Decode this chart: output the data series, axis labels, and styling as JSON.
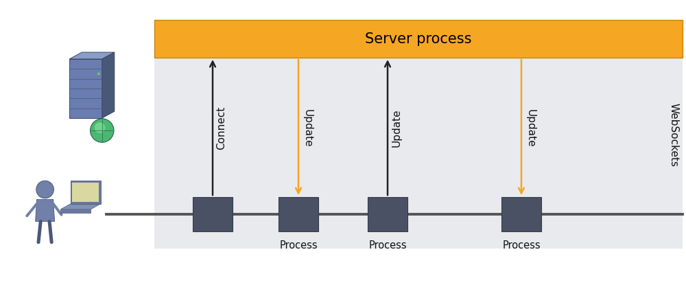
{
  "background_color": "#ffffff",
  "diagram_bg_color": "#e8eaed",
  "server_bar_color": "#f5a623",
  "server_bar_edge_color": "#c8850a",
  "server_text": "Server process",
  "server_text_color": "#000000",
  "process_box_color": "#4a5165",
  "process_box_edge": "#353a4a",
  "timeline_color": "#555555",
  "arrow_up_color": "#222222",
  "arrow_down_color": "#f5a623",
  "websockets_label": "WebSockets",
  "connect_label": "Connect",
  "update_label": "Update",
  "process_labels": [
    "Process",
    "Process",
    "Process"
  ],
  "figsize": [
    10.0,
    4.35
  ],
  "dpi": 100,
  "server_icon_color_front": "#6a7db0",
  "server_icon_color_top": "#8a9dc8",
  "server_icon_color_side": "#4a5878",
  "server_icon_stripe": "#4a5575",
  "globe_color": "#4ab870",
  "globe_dark": "#2a6050",
  "globe_light": "#80e098",
  "person_color": "#7080a8",
  "person_dark": "#4a5878",
  "laptop_color": "#6878a0",
  "laptop_screen": "#d8d8a0",
  "laptop_screen_inner": "#f0f0c0"
}
